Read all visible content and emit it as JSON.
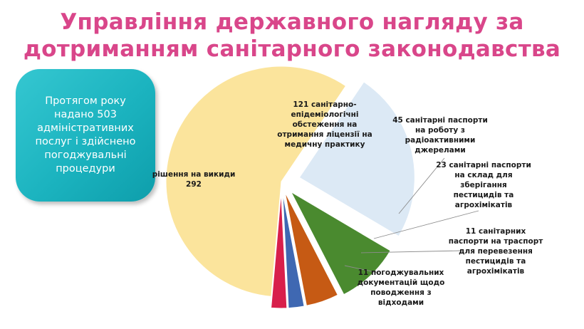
{
  "title": {
    "line1": "Управління державного нагляду за",
    "line2": "дотриманням санітарного законодавства"
  },
  "info_box": {
    "text": "Протягом року\nнадано  503\nадміністративних\nпослуг і здійснено\nпогоджувальні\nпроцедури"
  },
  "chart_data": {
    "type": "pie",
    "title": "",
    "total": 503,
    "slices": [
      {
        "label": "рішення на викиди\n292",
        "value": 292,
        "color": "#fbe49c"
      },
      {
        "label": "121 санітарно-\nепідеміологічні\nобстеження на\nотримання ліцензії на\nмедичну практику",
        "value": 121,
        "color": "#dce9f5"
      },
      {
        "label": "45 санітарні паспорти\nна роботу з\nрадіоактивними\nджерелами",
        "value": 45,
        "color": "#4a8a2f"
      },
      {
        "label": "23 санітарні паспорти\nна склад для\nзберігання\nпестицидів та\nагрохімікатів",
        "value": 23,
        "color": "#c65a14"
      },
      {
        "label": "11 санітарних\nпаспорти на  траспорт\nдля перевезення\nпестицидів та\nагрохімікатів",
        "value": 11,
        "color": "#3f68b2"
      },
      {
        "label": "11 погоджувальних\nдокументацій щодо\nповодження з\nвідходами",
        "value": 11,
        "color": "#d81f4b"
      }
    ]
  }
}
